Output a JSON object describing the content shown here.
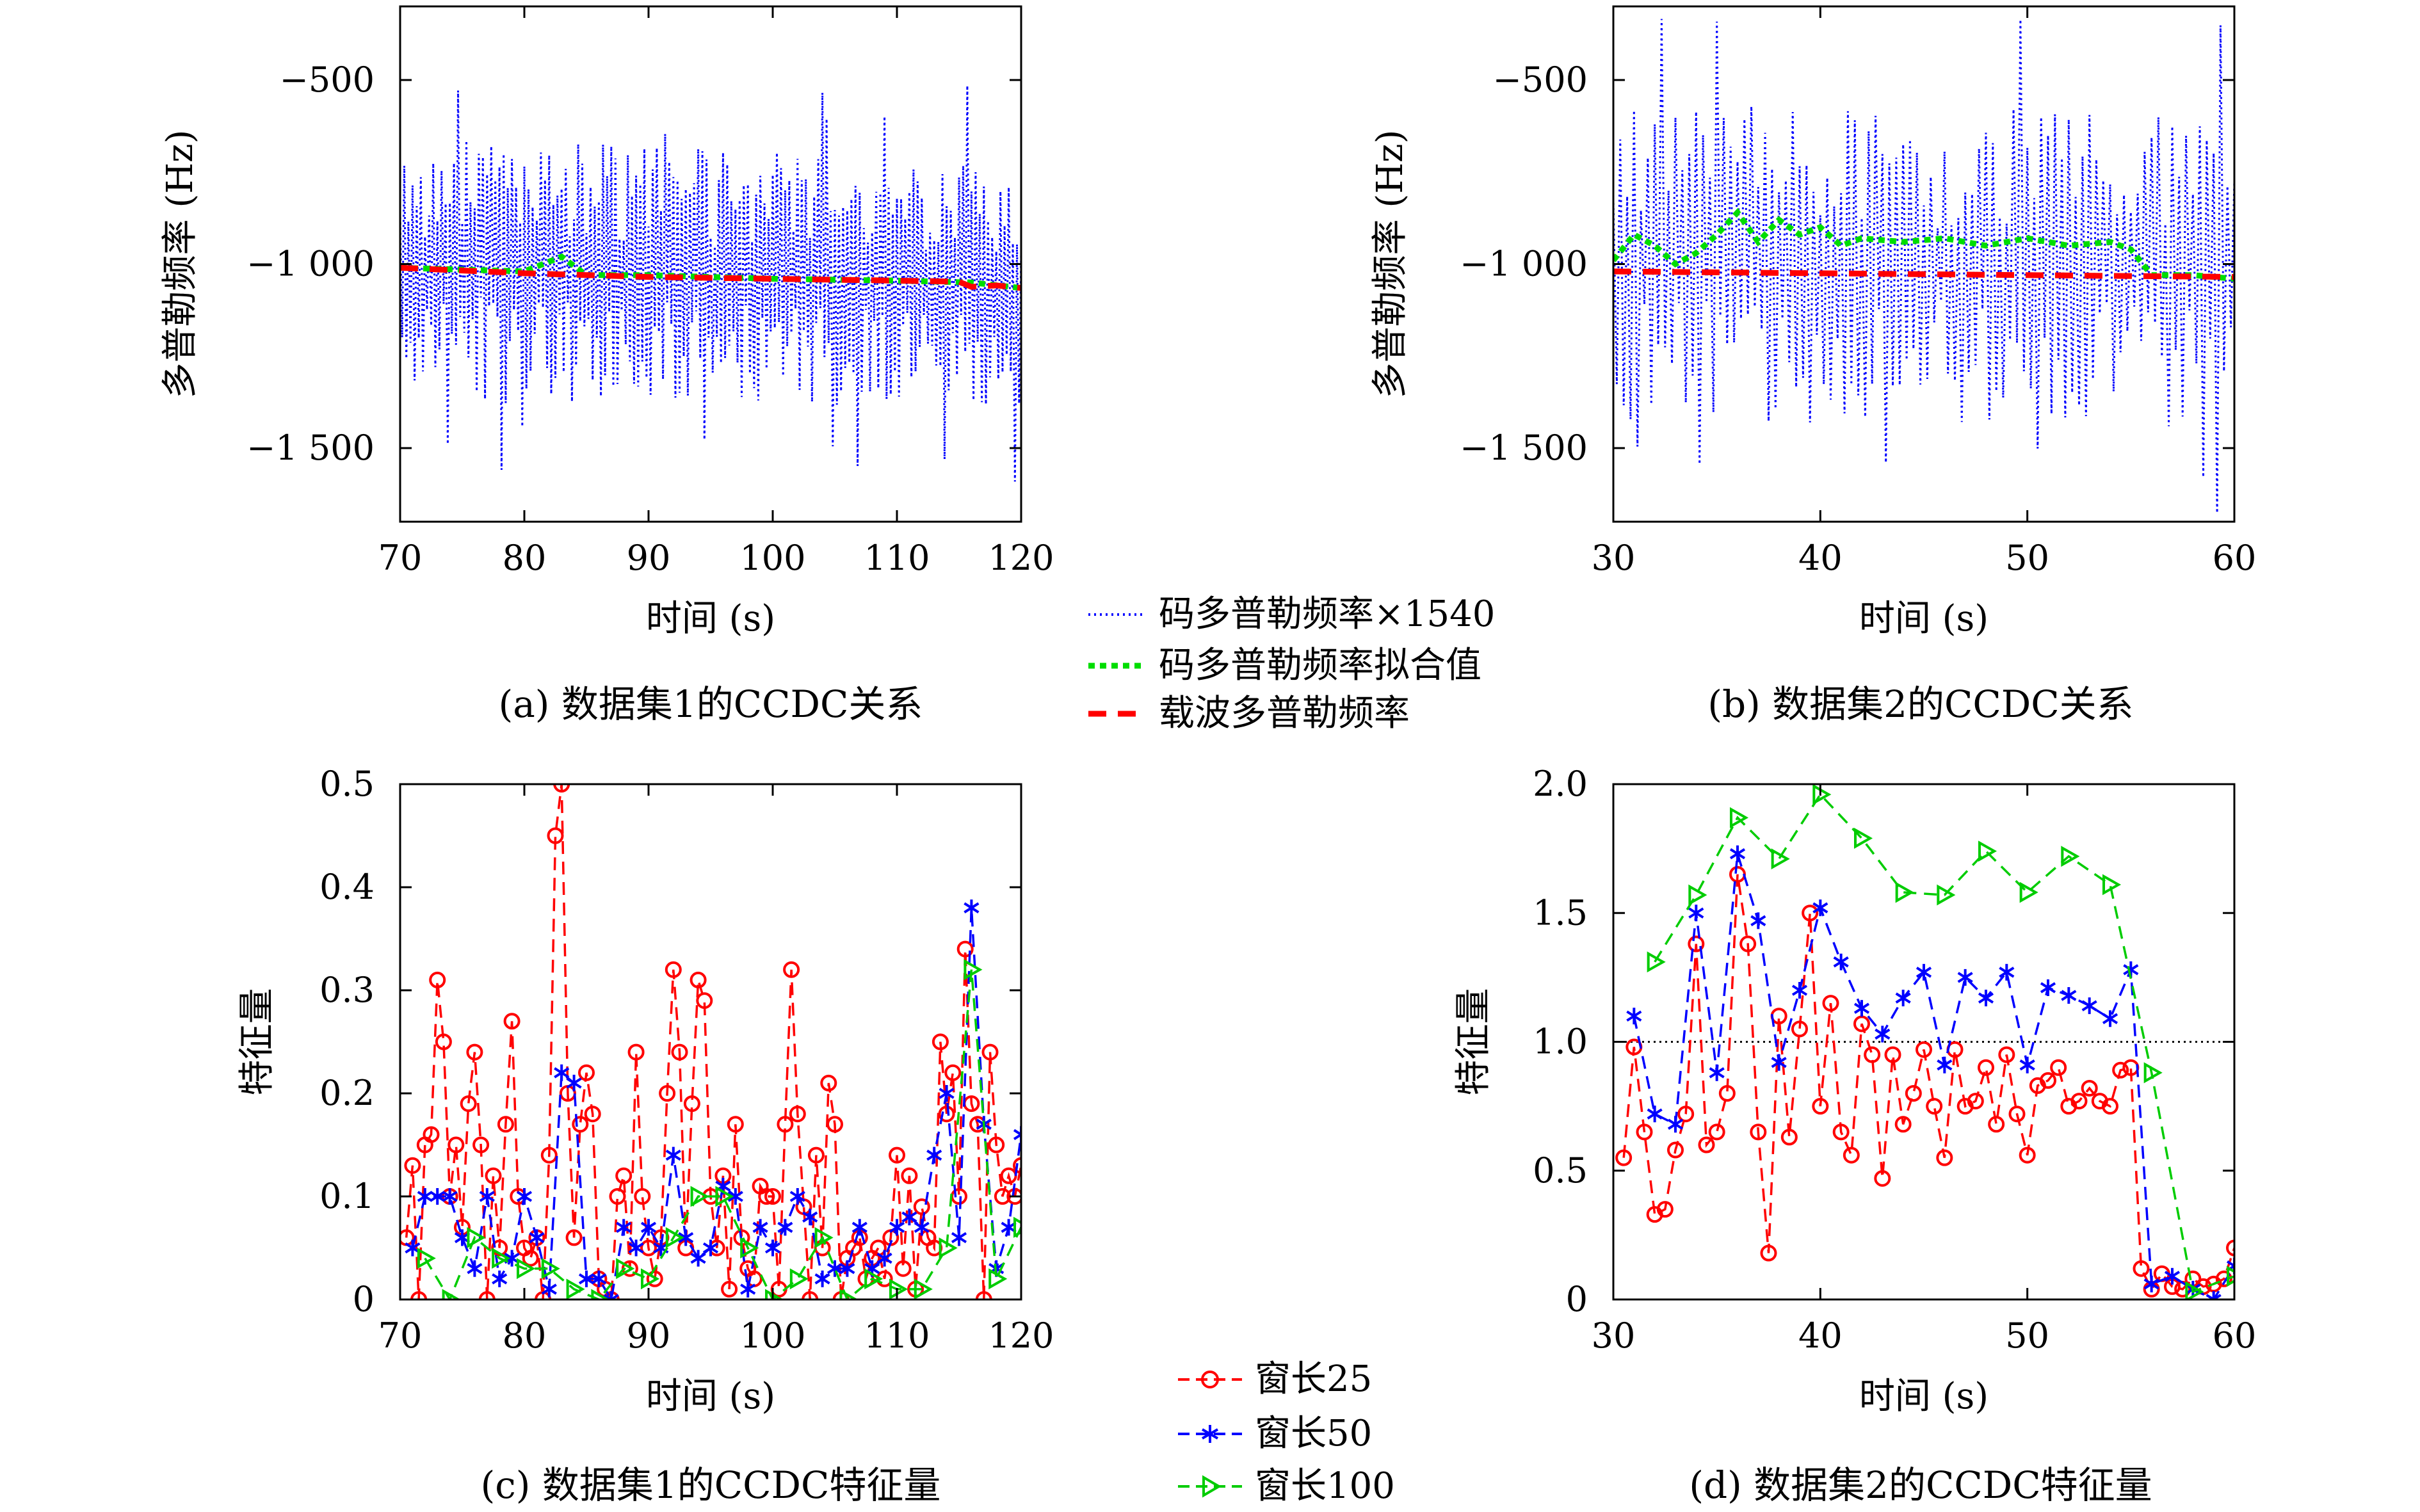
{
  "legend_top": {
    "items": [
      {
        "label": "码多普勒频率×1540",
        "color": "#0000ff",
        "style": "dotted"
      },
      {
        "label": "码多普勒频率拟合值",
        "color": "#00dd00",
        "style": "dotted-thick"
      },
      {
        "label": "载波多普勒频率",
        "color": "#ff0000",
        "style": "dashed"
      }
    ]
  },
  "legend_bottom": {
    "items": [
      {
        "label": "窗长25",
        "color": "#ff0000",
        "marker": "circle"
      },
      {
        "label": "窗长50",
        "color": "#0000ff",
        "marker": "star"
      },
      {
        "label": "窗长100",
        "color": "#00cc00",
        "marker": "triangle"
      }
    ]
  },
  "chart_data": [
    {
      "id": "a",
      "type": "line",
      "caption": "(a) 数据集1的CCDC关系",
      "xlabel": "时间 (s)",
      "ylabel": "多普勒频率 (Hz)",
      "xlim": [
        70,
        120
      ],
      "ylim": [
        -1700,
        -300
      ],
      "xticks": [
        70,
        80,
        90,
        100,
        110,
        120
      ],
      "yticks": [
        -500,
        -1000,
        -1500
      ],
      "ytick_labels": [
        "−500",
        "−1 000",
        "−1 500"
      ],
      "series": [
        {
          "key": "code",
          "color": "#0000ff",
          "style": "dotted",
          "points_per_s": 6,
          "center": [
            -1000,
            -1060
          ],
          "amplitude": 300,
          "seed": 17
        },
        {
          "key": "fit",
          "color": "#00dd00",
          "style": "dotted-thick",
          "x": [
            70,
            80,
            83,
            85,
            90,
            100,
            110,
            116,
            120
          ],
          "y": [
            -1010,
            -1020,
            -980,
            -1030,
            -1030,
            -1040,
            -1045,
            -1050,
            -1065
          ]
        },
        {
          "key": "carrier",
          "color": "#ff0000",
          "style": "dashed",
          "x": [
            70,
            80,
            90,
            100,
            110,
            115,
            116,
            118,
            120
          ],
          "y": [
            -1010,
            -1025,
            -1035,
            -1040,
            -1045,
            -1048,
            -1062,
            -1058,
            -1065
          ]
        }
      ]
    },
    {
      "id": "b",
      "type": "line",
      "caption": "(b) 数据集2的CCDC关系",
      "xlabel": "时间 (s)",
      "ylabel": "多普勒频率 (Hz)",
      "xlim": [
        30,
        60
      ],
      "ylim": [
        -1700,
        -300
      ],
      "xticks": [
        30,
        40,
        50,
        60
      ],
      "yticks": [
        -500,
        -1000,
        -1500
      ],
      "ytick_labels": [
        "−500",
        "−1 000",
        "−1 500"
      ],
      "series": [
        {
          "key": "code",
          "color": "#0000ff",
          "style": "dotted",
          "points_per_s": 6,
          "center": [
            -1000,
            -1000
          ],
          "amplitude": 380,
          "seed": 29
        },
        {
          "key": "fit",
          "color": "#00dd00",
          "style": "dotted-thick",
          "x": [
            30,
            31,
            32,
            33,
            34,
            35,
            36,
            37,
            38,
            39,
            40,
            41,
            42,
            44,
            46,
            48,
            50,
            52,
            54,
            55,
            56,
            58,
            60
          ],
          "y": [
            -990,
            -920,
            -950,
            -1000,
            -970,
            -920,
            -860,
            -940,
            -880,
            -920,
            -900,
            -950,
            -930,
            -940,
            -930,
            -950,
            -930,
            -950,
            -940,
            -960,
            -1030,
            -1030,
            -1040
          ]
        },
        {
          "key": "carrier",
          "color": "#ff0000",
          "style": "dashed",
          "x": [
            30,
            40,
            50,
            60
          ],
          "y": [
            -1020,
            -1025,
            -1030,
            -1035
          ]
        }
      ]
    },
    {
      "id": "c",
      "type": "line",
      "caption": "(c) 数据集1的CCDC特征量",
      "xlabel": "时间 (s)",
      "ylabel": "特征量",
      "xlim": [
        70,
        120
      ],
      "ylim": [
        0,
        0.5
      ],
      "xticks": [
        70,
        80,
        90,
        100,
        110,
        120
      ],
      "yticks": [
        0,
        0.1,
        0.2,
        0.3,
        0.4,
        0.5
      ],
      "ytick_labels": [
        "0",
        "0.1",
        "0.2",
        "0.3",
        "0.4",
        "0.5"
      ],
      "series": [
        {
          "key": "w25",
          "color": "#ff0000",
          "marker": "circle",
          "x": [
            70.5,
            71,
            71.5,
            72,
            72.5,
            73,
            73.5,
            74,
            74.5,
            75,
            75.5,
            76,
            76.5,
            77,
            77.5,
            78,
            78.5,
            79,
            79.5,
            80,
            80.5,
            81,
            81.5,
            82,
            82.5,
            83,
            83.5,
            84,
            84.5,
            85,
            85.5,
            86,
            86.5,
            87,
            87.5,
            88,
            88.5,
            89,
            89.5,
            90,
            90.5,
            91,
            91.5,
            92,
            92.5,
            93,
            93.5,
            94,
            94.5,
            95,
            95.5,
            96,
            96.5,
            97,
            97.5,
            98,
            98.5,
            99,
            99.5,
            100,
            100.5,
            101,
            101.5,
            102,
            102.5,
            103,
            103.5,
            104,
            104.5,
            105,
            105.5,
            106,
            106.5,
            107,
            107.5,
            108,
            108.5,
            109,
            109.5,
            110,
            110.5,
            111,
            111.5,
            112,
            112.5,
            113,
            113.5,
            114,
            114.5,
            115,
            115.5,
            116,
            116.5,
            117,
            117.5,
            118,
            118.5,
            119,
            119.5,
            120
          ],
          "y": [
            0.06,
            0.13,
            0.0,
            0.15,
            0.16,
            0.31,
            0.25,
            0.1,
            0.15,
            0.07,
            0.19,
            0.24,
            0.15,
            0.0,
            0.12,
            0.05,
            0.17,
            0.27,
            0.1,
            0.05,
            0.04,
            0.06,
            0.0,
            0.14,
            0.45,
            0.5,
            0.2,
            0.06,
            0.17,
            0.22,
            0.18,
            0.02,
            0.01,
            0.0,
            0.1,
            0.12,
            0.03,
            0.24,
            0.1,
            0.05,
            0.02,
            0.06,
            0.2,
            0.32,
            0.24,
            0.05,
            0.19,
            0.31,
            0.29,
            0.1,
            0.05,
            0.12,
            0.01,
            0.17,
            0.06,
            0.03,
            0.02,
            0.11,
            0.1,
            0.1,
            0.01,
            0.17,
            0.32,
            0.18,
            0.09,
            0.0,
            0.14,
            0.05,
            0.21,
            0.17,
            0.0,
            0.04,
            0.05,
            0.06,
            0.02,
            0.04,
            0.05,
            0.02,
            0.06,
            0.14,
            0.03,
            0.12,
            0.01,
            0.09,
            0.06,
            0.05,
            0.25,
            0.18,
            0.22,
            0.1,
            0.34,
            0.19,
            0.17,
            0.0,
            0.24,
            0.15,
            0.1,
            0.12,
            0.1,
            0.13
          ]
        },
        {
          "key": "w50",
          "color": "#0000ff",
          "marker": "star",
          "x": [
            71,
            72,
            73,
            74,
            75,
            76,
            77,
            78,
            79,
            80,
            81,
            82,
            83,
            84,
            85,
            86,
            87,
            88,
            89,
            90,
            91,
            92,
            93,
            94,
            95,
            96,
            97,
            98,
            99,
            100,
            101,
            102,
            103,
            104,
            105,
            106,
            107,
            108,
            109,
            110,
            111,
            112,
            113,
            114,
            115,
            116,
            117,
            118,
            119,
            120
          ],
          "y": [
            0.05,
            0.1,
            0.1,
            0.1,
            0.06,
            0.03,
            0.1,
            0.02,
            0.04,
            0.1,
            0.06,
            0.01,
            0.22,
            0.21,
            0.02,
            0.02,
            0.0,
            0.07,
            0.05,
            0.07,
            0.05,
            0.14,
            0.06,
            0.04,
            0.05,
            0.11,
            0.1,
            0.01,
            0.07,
            0.05,
            0.07,
            0.1,
            0.08,
            0.02,
            0.03,
            0.03,
            0.07,
            0.03,
            0.04,
            0.07,
            0.08,
            0.07,
            0.14,
            0.2,
            0.06,
            0.38,
            0.17,
            0.03,
            0.07,
            0.16
          ]
        },
        {
          "key": "w100",
          "color": "#00cc00",
          "marker": "triangle",
          "x": [
            72,
            74,
            76,
            78,
            80,
            82,
            84,
            86,
            88,
            90,
            92,
            94,
            96,
            98,
            100,
            102,
            104,
            106,
            108,
            110,
            112,
            114,
            116,
            118,
            120
          ],
          "y": [
            0.04,
            0.0,
            0.06,
            0.04,
            0.03,
            0.03,
            0.01,
            0.0,
            0.03,
            0.02,
            0.06,
            0.1,
            0.1,
            0.05,
            0.0,
            0.02,
            0.06,
            0.0,
            0.02,
            0.01,
            0.01,
            0.05,
            0.32,
            0.02,
            0.07
          ]
        }
      ]
    },
    {
      "id": "d",
      "type": "line",
      "caption": "(d) 数据集2的CCDC特征量",
      "xlabel": "时间 (s)",
      "ylabel": "特征量",
      "xlim": [
        30,
        60
      ],
      "ylim": [
        0,
        2.0
      ],
      "xticks": [
        30,
        40,
        50,
        60
      ],
      "yticks": [
        0,
        0.5,
        1.0,
        1.5,
        2.0
      ],
      "ytick_labels": [
        "0",
        "0.5",
        "1.0",
        "1.5",
        "2.0"
      ],
      "reference_line": 1.0,
      "series": [
        {
          "key": "w25",
          "color": "#ff0000",
          "marker": "circle",
          "x": [
            30.5,
            31,
            31.5,
            32,
            32.5,
            33,
            33.5,
            34,
            34.5,
            35,
            35.5,
            36,
            36.5,
            37,
            37.5,
            38,
            38.5,
            39,
            39.5,
            40,
            40.5,
            41,
            41.5,
            42,
            42.5,
            43,
            43.5,
            44,
            44.5,
            45,
            45.5,
            46,
            46.5,
            47,
            47.5,
            48,
            48.5,
            49,
            49.5,
            50,
            50.5,
            51,
            51.5,
            52,
            52.5,
            53,
            53.5,
            54,
            54.5,
            55,
            55.5,
            56,
            56.5,
            57,
            57.5,
            58,
            58.5,
            59,
            59.5,
            60
          ],
          "y": [
            0.55,
            0.98,
            0.65,
            0.33,
            0.35,
            0.58,
            0.72,
            1.38,
            0.6,
            0.65,
            0.8,
            1.65,
            1.38,
            0.65,
            0.18,
            1.1,
            0.63,
            1.05,
            1.5,
            0.75,
            1.15,
            0.65,
            0.56,
            1.07,
            0.95,
            0.47,
            0.95,
            0.68,
            0.8,
            0.97,
            0.75,
            0.55,
            0.97,
            0.75,
            0.77,
            0.9,
            0.68,
            0.95,
            0.72,
            0.56,
            0.83,
            0.85,
            0.9,
            0.75,
            0.77,
            0.82,
            0.77,
            0.75,
            0.89,
            0.9,
            0.12,
            0.04,
            0.1,
            0.05,
            0.04,
            0.08,
            0.05,
            0.06,
            0.08,
            0.2
          ]
        },
        {
          "key": "w50",
          "color": "#0000ff",
          "marker": "star",
          "x": [
            31,
            32,
            33,
            34,
            35,
            36,
            37,
            38,
            39,
            40,
            41,
            42,
            43,
            44,
            45,
            46,
            47,
            48,
            49,
            50,
            51,
            52,
            53,
            54,
            55,
            56,
            57,
            58,
            59,
            60
          ],
          "y": [
            1.1,
            0.72,
            0.68,
            1.5,
            0.88,
            1.73,
            1.47,
            0.92,
            1.2,
            1.52,
            1.31,
            1.13,
            1.03,
            1.17,
            1.27,
            0.91,
            1.25,
            1.17,
            1.27,
            0.91,
            1.21,
            1.18,
            1.14,
            1.09,
            1.28,
            0.06,
            0.09,
            0.04,
            0.0,
            0.13
          ]
        },
        {
          "key": "w100",
          "color": "#00cc00",
          "marker": "triangle",
          "x": [
            32,
            34,
            36,
            38,
            40,
            42,
            44,
            46,
            48,
            50,
            52,
            54,
            56,
            58,
            60
          ],
          "y": [
            1.31,
            1.57,
            1.87,
            1.71,
            1.96,
            1.79,
            1.58,
            1.57,
            1.74,
            1.58,
            1.72,
            1.61,
            0.88,
            0.03,
            0.09
          ]
        }
      ]
    }
  ]
}
